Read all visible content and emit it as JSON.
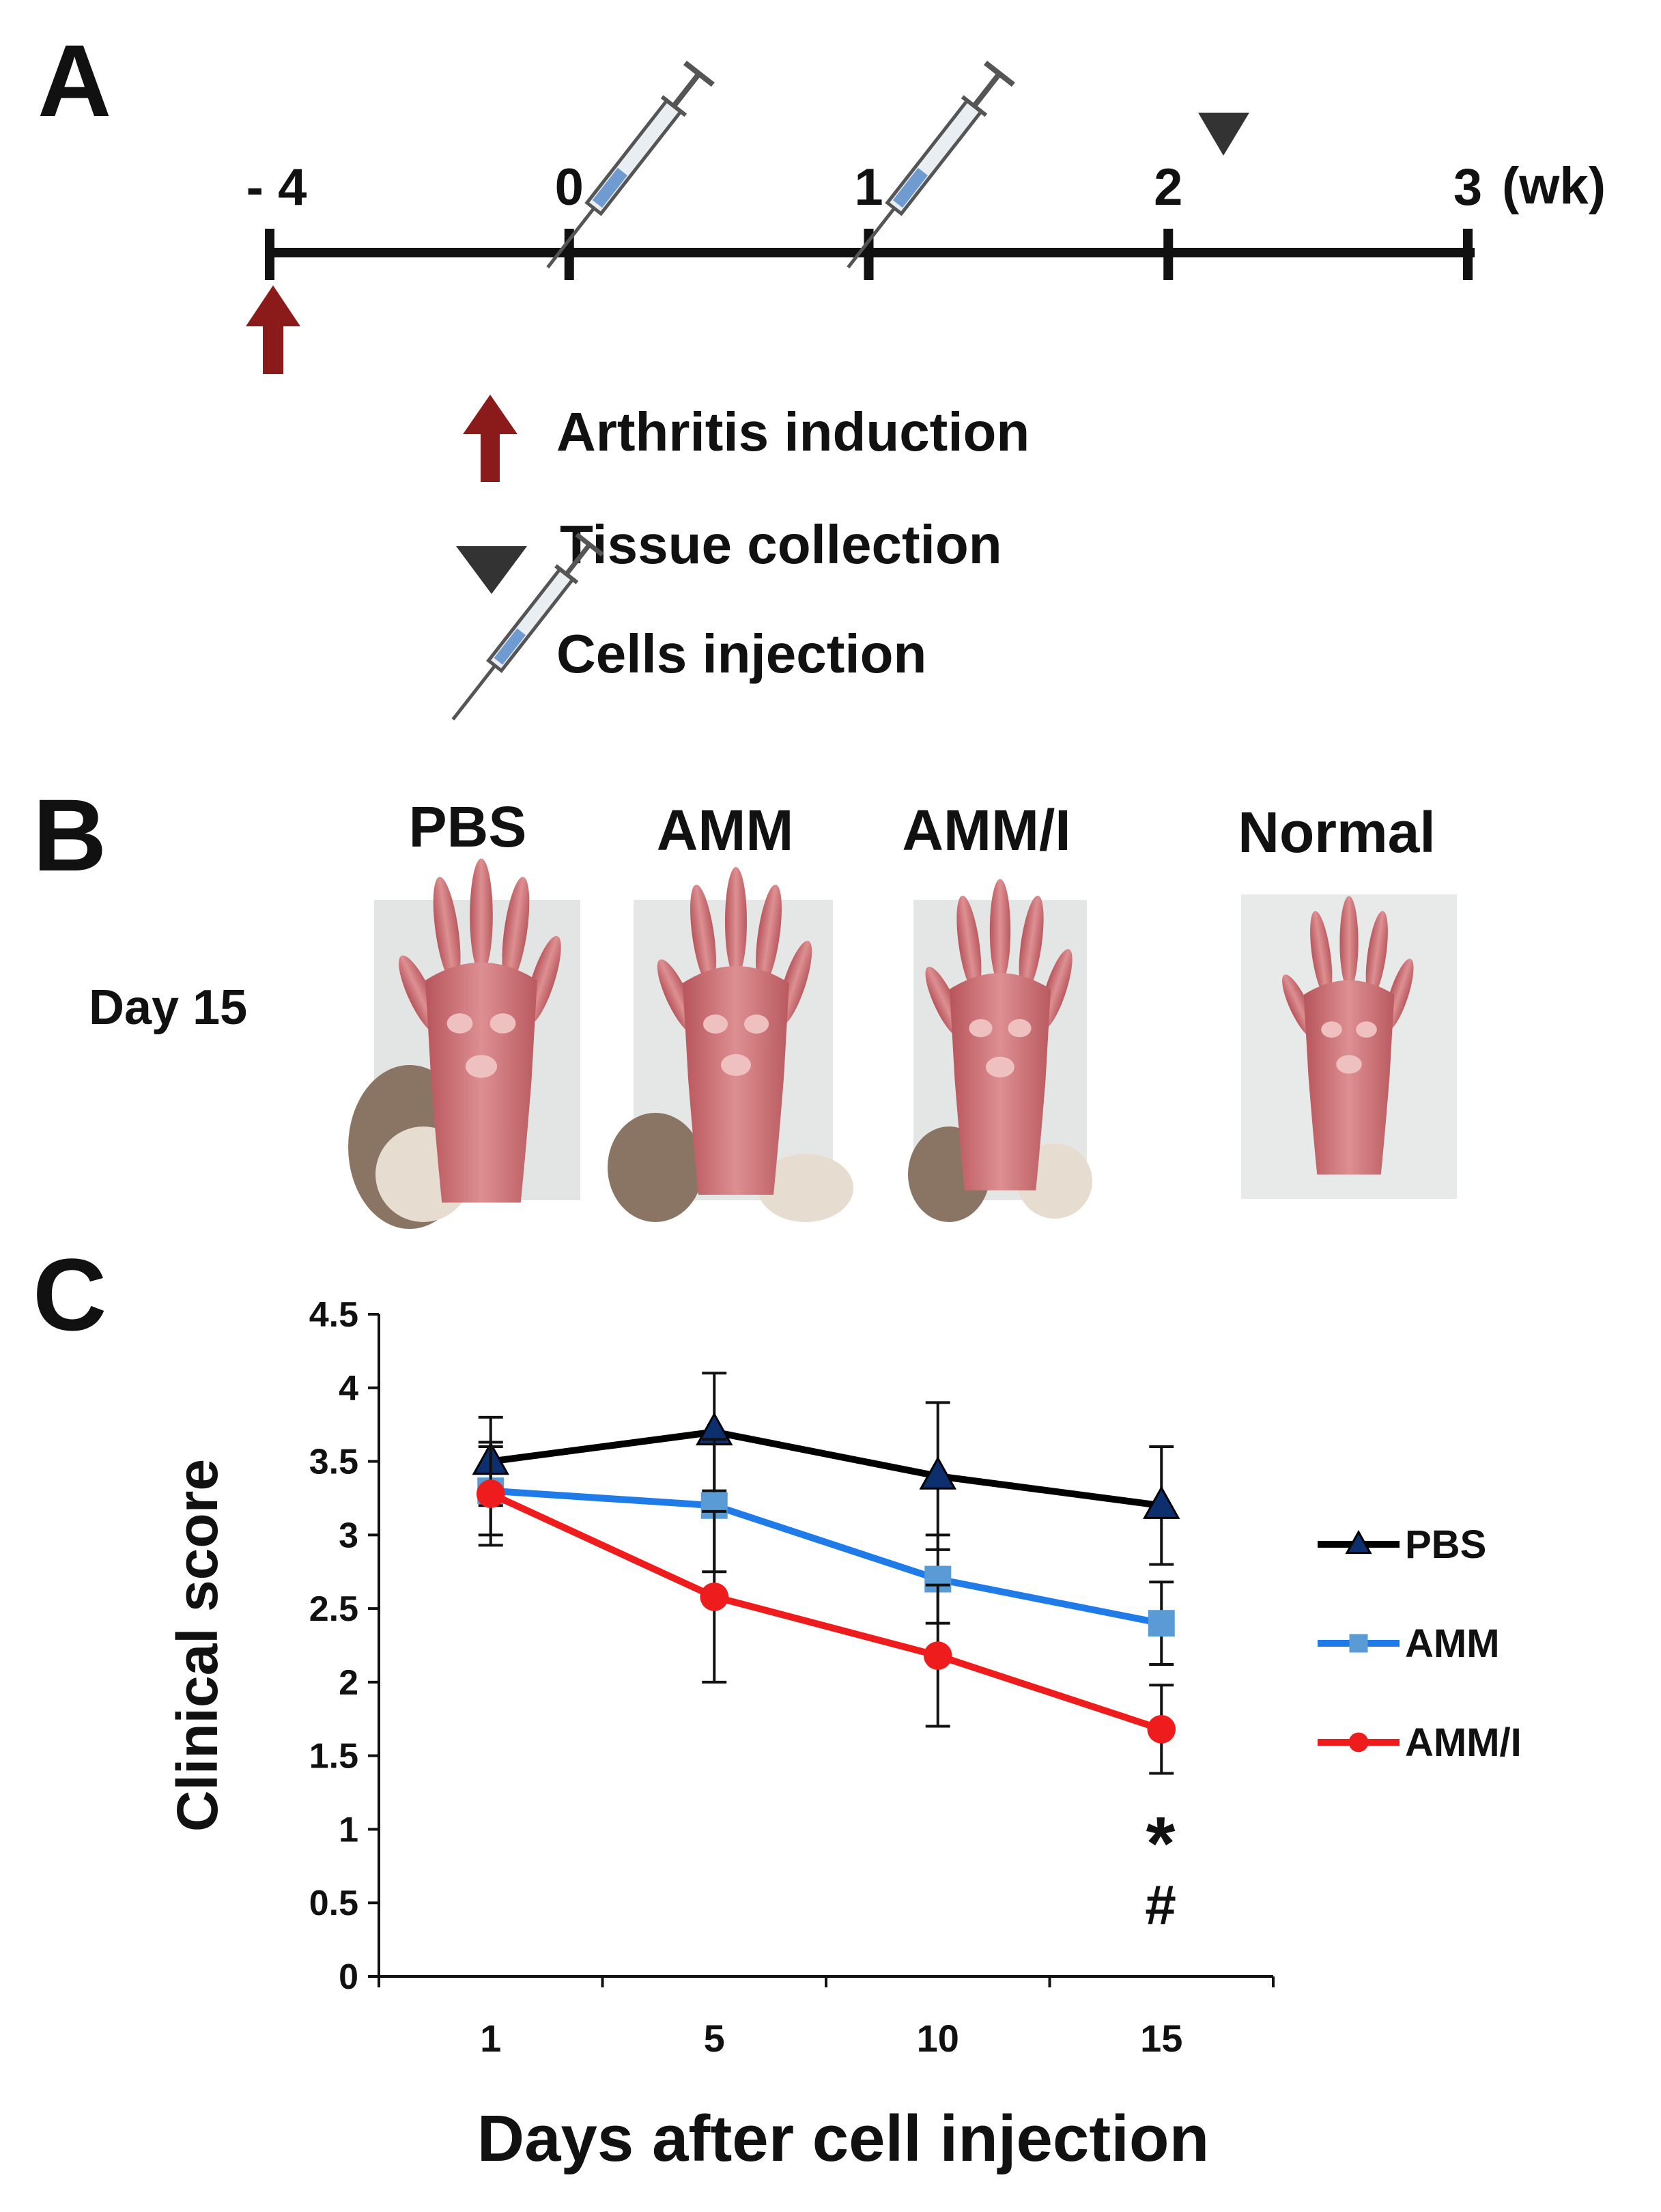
{
  "panel_a": {
    "letter": "A",
    "timeline": {
      "ticks": [
        "- 4",
        "0",
        "1",
        "2",
        "3"
      ],
      "unit": "(wk)"
    },
    "legend": [
      {
        "icon": "red-arrow-icon",
        "label": "Arthritis induction"
      },
      {
        "icon": "triangle-icon",
        "label": "Tissue collection"
      },
      {
        "icon": "syringe-icon",
        "label": "Cells injection"
      }
    ],
    "colors": {
      "arrow": "#8b1a1a",
      "triangle": "#333333",
      "syringe": "#555555"
    }
  },
  "panel_b": {
    "letter": "B",
    "row_label": "Day 15",
    "groups": [
      "PBS",
      "AMM",
      "AMM/I",
      "Normal"
    ]
  },
  "panel_c": {
    "letter": "C",
    "chart_data": {
      "type": "line",
      "x": [
        1,
        5,
        10,
        15
      ],
      "xlabel": "Days after cell injection",
      "ylabel": "Clinical score",
      "ylim": [
        0,
        4.5
      ],
      "yticks": [
        "0",
        "0.5",
        "1",
        "1.5",
        "2",
        "2.5",
        "3",
        "3.5",
        "4",
        "4.5"
      ],
      "xticks": [
        "1",
        "5",
        "10",
        "15"
      ],
      "legend_position": "right",
      "series": [
        {
          "name": "PBS",
          "values": [
            3.5,
            3.7,
            3.4,
            3.2
          ],
          "errors": [
            0.3,
            0.4,
            0.5,
            0.4
          ],
          "color": "#000000",
          "marker": "triangle"
        },
        {
          "name": "AMM",
          "values": [
            3.3,
            3.2,
            2.7,
            2.4
          ],
          "errors": [
            0.3,
            0.45,
            0.3,
            0.28
          ],
          "color": "#1e7be8",
          "marker": "square"
        },
        {
          "name": "AMM/I",
          "values": [
            3.28,
            2.58,
            2.18,
            1.68
          ],
          "errors": [
            0.35,
            0.58,
            0.48,
            0.3
          ],
          "color": "#ee1c1c",
          "marker": "circle"
        }
      ],
      "annotations": [
        "*",
        "#"
      ]
    }
  }
}
